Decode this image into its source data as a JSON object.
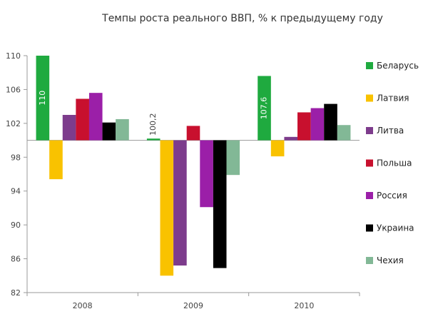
{
  "chart_data": {
    "type": "bar",
    "title": "Темпы роста реального ВВП, % к предыдущему году",
    "xlabel": "",
    "ylabel": "",
    "categories": [
      "2008",
      "2009",
      "2010"
    ],
    "baseline": 100,
    "ylim": [
      82,
      110
    ],
    "yticks": [
      "82",
      "86",
      "90",
      "94",
      "98",
      "102",
      "106",
      "110"
    ],
    "grid": false,
    "legend_position": "right",
    "series": [
      {
        "name": "Беларусь",
        "color": "#1faa3f",
        "values": [
          110,
          100.2,
          107.6
        ],
        "labels": [
          "110",
          "100,2",
          "107,6"
        ]
      },
      {
        "name": "Латвия",
        "color": "#f9c200",
        "values": [
          95.4,
          84,
          98.1
        ]
      },
      {
        "name": "Литва",
        "color": "#7d3c8c",
        "values": [
          103,
          85.2,
          100.4
        ]
      },
      {
        "name": "Польша",
        "color": "#c8102e",
        "values": [
          104.9,
          101.7,
          103.3
        ]
      },
      {
        "name": "Россия",
        "color": "#9b1fa8",
        "values": [
          105.6,
          92.1,
          103.8
        ]
      },
      {
        "name": "Украина",
        "color": "#000000",
        "values": [
          102.1,
          84.9,
          104.3
        ]
      },
      {
        "name": "Чехия",
        "color": "#82b896",
        "values": [
          102.5,
          95.9,
          101.8
        ]
      }
    ]
  }
}
